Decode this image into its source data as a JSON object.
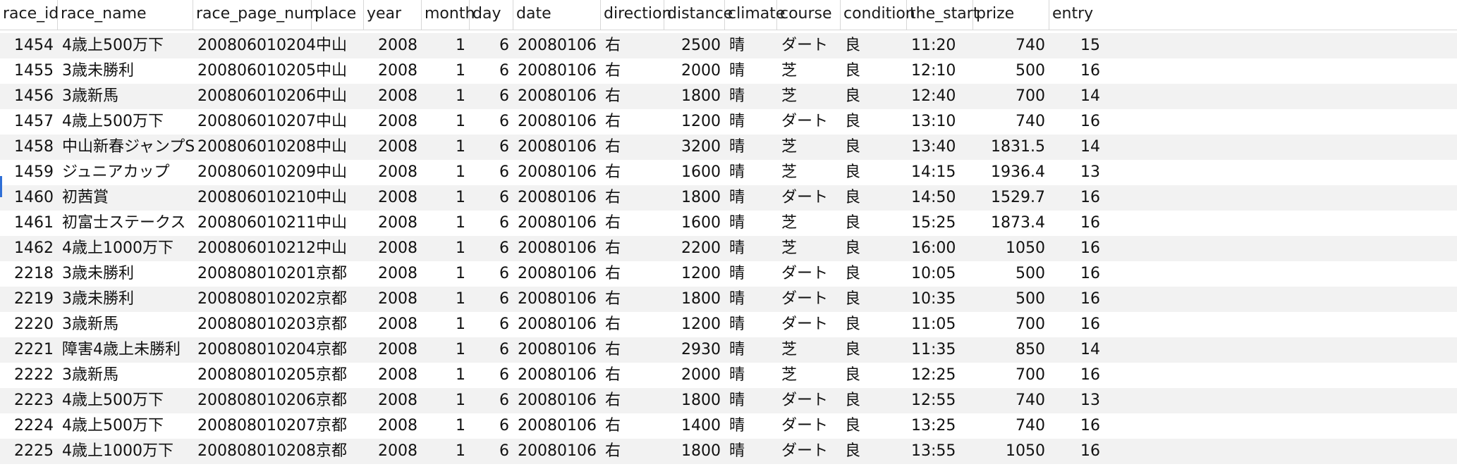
{
  "table": {
    "columns": [
      {
        "key": "race_id",
        "label": "race_id",
        "align": "num"
      },
      {
        "key": "race_name",
        "label": "race_name",
        "align": "txt"
      },
      {
        "key": "race_page_num",
        "label": "race_page_num",
        "align": "txt"
      },
      {
        "key": "place",
        "label": "place",
        "align": "txt"
      },
      {
        "key": "year",
        "label": "year",
        "align": "num"
      },
      {
        "key": "month",
        "label": "month",
        "align": "num"
      },
      {
        "key": "day",
        "label": "day",
        "align": "num"
      },
      {
        "key": "date",
        "label": "date",
        "align": "num"
      },
      {
        "key": "direction",
        "label": "direction",
        "align": "txt"
      },
      {
        "key": "distance",
        "label": "distance",
        "align": "num"
      },
      {
        "key": "climate",
        "label": "climate",
        "align": "txt"
      },
      {
        "key": "course",
        "label": "course",
        "align": "txt"
      },
      {
        "key": "condition",
        "label": "condition",
        "align": "txt"
      },
      {
        "key": "the_start",
        "label": "the_start",
        "align": "txt"
      },
      {
        "key": "prize",
        "label": "prize",
        "align": "num"
      },
      {
        "key": "entry",
        "label": "entry",
        "align": "num"
      }
    ],
    "rows": [
      [
        "1454",
        "4歳上500万下",
        "200806010204",
        "中山",
        "2008",
        "1",
        "6",
        "20080106",
        "右",
        "2500",
        "晴",
        "ダート",
        "良",
        "11:20",
        "740",
        "15"
      ],
      [
        "1455",
        "3歳未勝利",
        "200806010205",
        "中山",
        "2008",
        "1",
        "6",
        "20080106",
        "右",
        "2000",
        "晴",
        "芝",
        "良",
        "12:10",
        "500",
        "16"
      ],
      [
        "1456",
        "3歳新馬",
        "200806010206",
        "中山",
        "2008",
        "1",
        "6",
        "20080106",
        "右",
        "1800",
        "晴",
        "芝",
        "良",
        "12:40",
        "700",
        "14"
      ],
      [
        "1457",
        "4歳上500万下",
        "200806010207",
        "中山",
        "2008",
        "1",
        "6",
        "20080106",
        "右",
        "1200",
        "晴",
        "ダート",
        "良",
        "13:10",
        "740",
        "16"
      ],
      [
        "1458",
        "中山新春ジャンプS",
        "200806010208",
        "中山",
        "2008",
        "1",
        "6",
        "20080106",
        "右",
        "3200",
        "晴",
        "芝",
        "良",
        "13:40",
        "1831.5",
        "14"
      ],
      [
        "1459",
        "ジュニアカップ",
        "200806010209",
        "中山",
        "2008",
        "1",
        "6",
        "20080106",
        "右",
        "1600",
        "晴",
        "芝",
        "良",
        "14:15",
        "1936.4",
        "13"
      ],
      [
        "1460",
        "初茜賞",
        "200806010210",
        "中山",
        "2008",
        "1",
        "6",
        "20080106",
        "右",
        "1800",
        "晴",
        "ダート",
        "良",
        "14:50",
        "1529.7",
        "16"
      ],
      [
        "1461",
        "初富士ステークス",
        "200806010211",
        "中山",
        "2008",
        "1",
        "6",
        "20080106",
        "右",
        "1600",
        "晴",
        "芝",
        "良",
        "15:25",
        "1873.4",
        "16"
      ],
      [
        "1462",
        "4歳上1000万下",
        "200806010212",
        "中山",
        "2008",
        "1",
        "6",
        "20080106",
        "右",
        "2200",
        "晴",
        "芝",
        "良",
        "16:00",
        "1050",
        "16"
      ],
      [
        "2218",
        "3歳未勝利",
        "200808010201",
        "京都",
        "2008",
        "1",
        "6",
        "20080106",
        "右",
        "1200",
        "晴",
        "ダート",
        "良",
        "10:05",
        "500",
        "16"
      ],
      [
        "2219",
        "3歳未勝利",
        "200808010202",
        "京都",
        "2008",
        "1",
        "6",
        "20080106",
        "右",
        "1800",
        "晴",
        "ダート",
        "良",
        "10:35",
        "500",
        "16"
      ],
      [
        "2220",
        "3歳新馬",
        "200808010203",
        "京都",
        "2008",
        "1",
        "6",
        "20080106",
        "右",
        "1200",
        "晴",
        "ダート",
        "良",
        "11:05",
        "700",
        "16"
      ],
      [
        "2221",
        "障害4歳上未勝利",
        "200808010204",
        "京都",
        "2008",
        "1",
        "6",
        "20080106",
        "右",
        "2930",
        "晴",
        "芝",
        "良",
        "11:35",
        "850",
        "14"
      ],
      [
        "2222",
        "3歳新馬",
        "200808010205",
        "京都",
        "2008",
        "1",
        "6",
        "20080106",
        "右",
        "2000",
        "晴",
        "芝",
        "良",
        "12:25",
        "700",
        "16"
      ],
      [
        "2223",
        "4歳上500万下",
        "200808010206",
        "京都",
        "2008",
        "1",
        "6",
        "20080106",
        "右",
        "1800",
        "晴",
        "ダート",
        "良",
        "12:55",
        "740",
        "13"
      ],
      [
        "2224",
        "4歳上500万下",
        "200808010207",
        "京都",
        "2008",
        "1",
        "6",
        "20080106",
        "右",
        "1400",
        "晴",
        "ダート",
        "良",
        "13:25",
        "740",
        "16"
      ],
      [
        "2225",
        "4歳上1000万下",
        "200808010208",
        "京都",
        "2008",
        "1",
        "6",
        "20080106",
        "右",
        "1800",
        "晴",
        "ダート",
        "良",
        "13:55",
        "1050",
        "16"
      ]
    ]
  },
  "colors": {
    "stripe": "#f2f2f2",
    "border": "#d7d7d7",
    "selection_marker": "#2f6fd6"
  }
}
